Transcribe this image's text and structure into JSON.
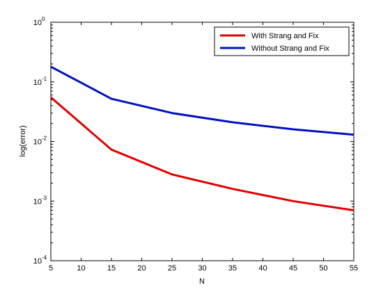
{
  "chart_data": {
    "type": "line",
    "title": "",
    "xlabel": "N",
    "ylabel": "log(error)",
    "xlim": [
      5,
      55
    ],
    "ylim": [
      0.0001,
      1
    ],
    "yscale": "log",
    "grid": false,
    "legend_position": "top-right",
    "x_ticks": [
      "5",
      "10",
      "15",
      "20",
      "25",
      "30",
      "35",
      "40",
      "45",
      "50",
      "55"
    ],
    "y_ticks": [
      {
        "base": "10",
        "exp": "0"
      },
      {
        "base": "10",
        "exp": "-1"
      },
      {
        "base": "10",
        "exp": "-2"
      },
      {
        "base": "10",
        "exp": "-3"
      },
      {
        "base": "10",
        "exp": "-4"
      }
    ],
    "series": [
      {
        "name": "With Strang and Fix",
        "color": "#e00000",
        "x": [
          5,
          15,
          25,
          35,
          45,
          55
        ],
        "y": [
          0.055,
          0.0073,
          0.0028,
          0.0016,
          0.001,
          0.0007
        ]
      },
      {
        "name": "Without Strang and Fix",
        "color": "#0010c0",
        "x": [
          5,
          15,
          25,
          35,
          45,
          55
        ],
        "y": [
          0.18,
          0.052,
          0.03,
          0.021,
          0.016,
          0.013
        ]
      }
    ]
  }
}
